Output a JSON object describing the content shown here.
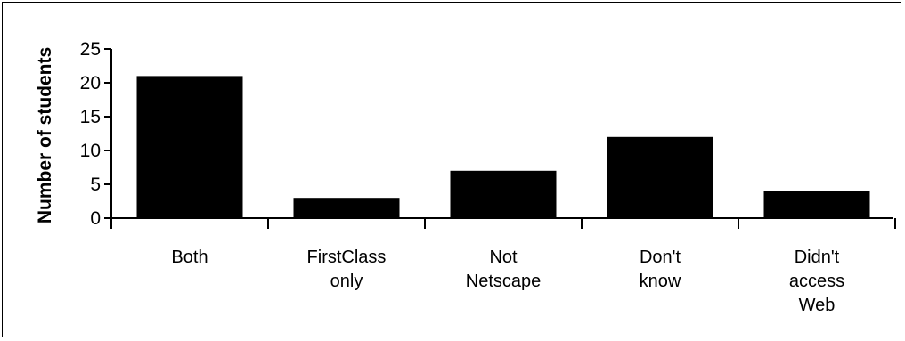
{
  "chart_data": {
    "type": "bar",
    "categories": [
      [
        "Both"
      ],
      [
        "FirstClass",
        "only"
      ],
      [
        "Not",
        "Netscape"
      ],
      [
        "Don't",
        "know"
      ],
      [
        "Didn't",
        "access",
        "Web"
      ]
    ],
    "values": [
      21,
      3,
      7,
      12,
      4
    ],
    "ylabel": "Number of students",
    "xlabel": "",
    "title": "",
    "ylim": [
      0,
      25
    ],
    "yticks": [
      0,
      5,
      10,
      15,
      20,
      25
    ],
    "bar_color": "#000000",
    "grid": false,
    "legend": "none"
  }
}
